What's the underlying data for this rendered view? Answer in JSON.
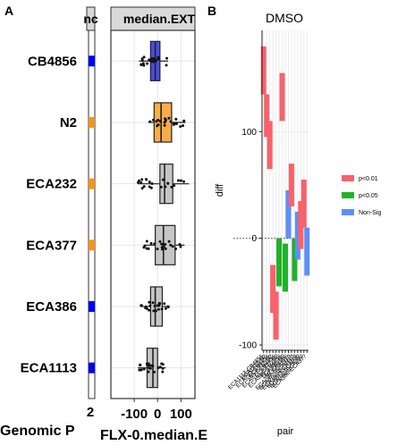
{
  "panel_a": {
    "label": "A",
    "strip_left": "nc",
    "strip_main": "median.EXT",
    "left_axis_title": "Genomic P",
    "left_axis_tick": "2",
    "x_axis_title": "FLX-0.median.E",
    "x_ticks": [
      "-100",
      "0",
      "100"
    ]
  },
  "panel_b": {
    "label": "B",
    "title": "DMSO",
    "y_axis_title": "diff",
    "x_axis_title": "pair",
    "y_ticks": [
      "100",
      "0",
      "-100"
    ],
    "x_tick_labels": [
      "ECA1113-CB4856",
      "ECA1113-N2",
      "ECA232-CB4856",
      "ECA232-N2",
      "ECA377-CB4856",
      "ECA377-N2",
      "ECA386-CB4856",
      "ECA386-N2",
      "N2-CB4856",
      "ECA232-ECA1113",
      "ECA377-ECA1113",
      "ECA386-ECA1113",
      "ECA377-ECA232",
      "ECA386-ECA232",
      "ECA386-ECA377"
    ]
  },
  "legend": {
    "items": [
      {
        "label": "p<0.01",
        "color": "#f8626b"
      },
      {
        "label": "p<0.05",
        "color": "#1fb22a"
      },
      {
        "label": "Non-Sig",
        "color": "#5e8ff8"
      }
    ]
  },
  "chart_data": [
    {
      "type": "box",
      "categories": [
        "CB4856",
        "N2",
        "ECA232",
        "ECA377",
        "ECA386",
        "ECA1113"
      ],
      "category_colors": [
        "#0000ee",
        "#f5941c",
        "#f5941c",
        "#f5941c",
        "#0000ee",
        "#0000ee"
      ],
      "box_fills": [
        "#4b4be6",
        "#f8ad4a",
        "#c6c6c6",
        "#c6c6c6",
        "#c6c6c6",
        "#c6c6c6"
      ],
      "boxes": [
        {
          "min": -80,
          "q1": -30,
          "median": -10,
          "q3": 10,
          "max": 45
        },
        {
          "min": -40,
          "q1": -15,
          "median": 15,
          "q3": 60,
          "max": 120
        },
        {
          "min": -85,
          "q1": 10,
          "median": 30,
          "q3": 65,
          "max": 135
        },
        {
          "min": -60,
          "q1": -10,
          "median": 25,
          "q3": 75,
          "max": 115
        },
        {
          "min": -75,
          "q1": -30,
          "median": -10,
          "q3": 20,
          "max": 50
        },
        {
          "min": -85,
          "q1": -45,
          "median": -20,
          "q3": 0,
          "max": 35
        }
      ],
      "xlim": [
        -200,
        160
      ],
      "x_ticks": [
        -100,
        0,
        100
      ],
      "xlabel": "FLX-0.median.E",
      "grid": true
    },
    {
      "type": "bar",
      "title": "DMSO",
      "xlabel": "pair",
      "ylabel": "diff",
      "ylim": [
        -105,
        195
      ],
      "y_ticks": [
        100,
        0,
        -100
      ],
      "grid": true,
      "legend_position": "right",
      "series_order": [
        "p<0.01",
        "p<0.05",
        "Non-Sig"
      ],
      "intervals": [
        {
          "lower": 135,
          "upper": 180,
          "group": "p<0.01"
        },
        {
          "lower": 95,
          "upper": 135,
          "group": "p<0.01"
        },
        {
          "lower": 65,
          "upper": 110,
          "group": "p<0.01"
        },
        {
          "lower": -70,
          "upper": -25,
          "group": "p<0.01"
        },
        {
          "lower": -95,
          "upper": -50,
          "group": "p<0.01"
        },
        {
          "lower": -45,
          "upper": 0,
          "group": "p<0.05"
        },
        {
          "lower": 110,
          "upper": 155,
          "group": "p<0.01"
        },
        {
          "lower": -50,
          "upper": -5,
          "group": "p<0.05"
        },
        {
          "lower": 0,
          "upper": 45,
          "group": "Non-Sig"
        },
        {
          "lower": 30,
          "upper": 70,
          "group": "p<0.01"
        },
        {
          "lower": -40,
          "upper": 0,
          "group": "p<0.05"
        },
        {
          "lower": -20,
          "upper": 25,
          "group": "Non-Sig"
        },
        {
          "lower": -10,
          "upper": 35,
          "group": "p<0.01"
        },
        {
          "lower": 10,
          "upper": 55,
          "group": "p<0.01"
        },
        {
          "lower": -35,
          "upper": 10,
          "group": "Non-Sig"
        }
      ]
    }
  ]
}
